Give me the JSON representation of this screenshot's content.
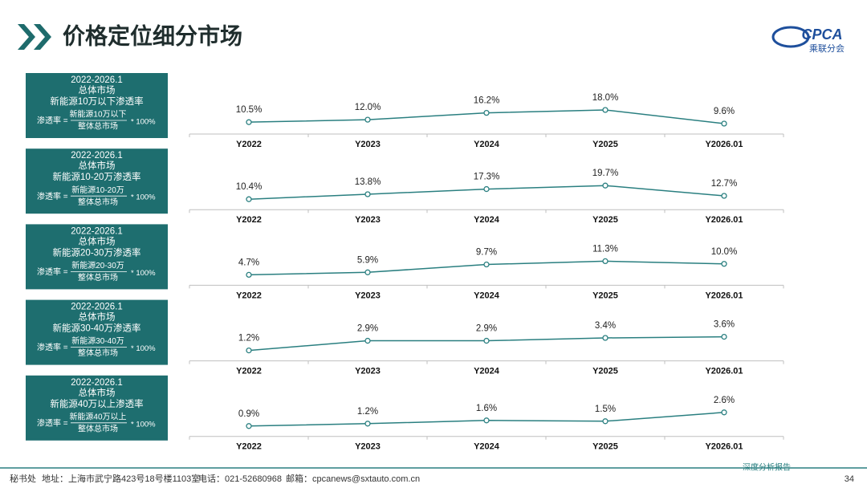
{
  "title": "价格定位细分市场",
  "logo": {
    "name": "CPCA",
    "subtitle": "乘联分会"
  },
  "footer": {
    "office": "秘书处",
    "address": "地址：上海市武宁路423号18号楼1103室",
    "phone": "电话：021-52680968",
    "email": "邮箱：cpcanews@sxtauto.com.cn",
    "report": "深度分析报告",
    "page": "34"
  },
  "chart_data": [
    {
      "type": "line",
      "period": "2022-2026.1",
      "market": "总体市场",
      "title": "新能源10万以下渗透率",
      "formula": {
        "lhs": "渗透率 =",
        "numerator": "新能源10万以下",
        "denominator": "整体总市场",
        "factor": "* 100%"
      },
      "categories": [
        "Y2022",
        "Y2023",
        "Y2024",
        "Y2025",
        "Y2026.01"
      ],
      "color": "#2a7f80",
      "values": [
        10.5,
        12.0,
        16.2,
        18.0,
        9.6
      ],
      "value_labels": [
        "10.5%",
        "12.0%",
        "16.2%",
        "18.0%",
        "9.6%"
      ]
    },
    {
      "type": "line",
      "period": "2022-2026.1",
      "market": "总体市场",
      "title": "新能源10-20万渗透率",
      "formula": {
        "lhs": "渗透率 =",
        "numerator": "新能源10-20万",
        "denominator": "整体总市场",
        "factor": "* 100%"
      },
      "categories": [
        "Y2022",
        "Y2023",
        "Y2024",
        "Y2025",
        "Y2026.01"
      ],
      "color": "#2a7f80",
      "values": [
        10.4,
        13.8,
        17.3,
        19.7,
        12.7
      ],
      "value_labels": [
        "10.4%",
        "13.8%",
        "17.3%",
        "19.7%",
        "12.7%"
      ]
    },
    {
      "type": "line",
      "period": "2022-2026.1",
      "market": "总体市场",
      "title": "新能源20-30万渗透率",
      "formula": {
        "lhs": "渗透率 =",
        "numerator": "新能源20-30万",
        "denominator": "整体总市场",
        "factor": "* 100%"
      },
      "categories": [
        "Y2022",
        "Y2023",
        "Y2024",
        "Y2025",
        "Y2026.01"
      ],
      "color": "#2a7f80",
      "values": [
        4.7,
        5.9,
        9.7,
        11.3,
        10.0
      ],
      "value_labels": [
        "4.7%",
        "5.9%",
        "9.7%",
        "11.3%",
        "10.0%"
      ]
    },
    {
      "type": "line",
      "period": "2022-2026.1",
      "market": "总体市场",
      "title": "新能源30-40万渗透率",
      "formula": {
        "lhs": "渗透率 =",
        "numerator": "新能源30-40万",
        "denominator": "整体总市场",
        "factor": "* 100%"
      },
      "categories": [
        "Y2022",
        "Y2023",
        "Y2024",
        "Y2025",
        "Y2026.01"
      ],
      "color": "#2a7f80",
      "values": [
        1.2,
        2.9,
        2.9,
        3.4,
        3.6
      ],
      "value_labels": [
        "1.2%",
        "2.9%",
        "2.9%",
        "3.4%",
        "3.6%"
      ]
    },
    {
      "type": "line",
      "period": "2022-2026.1",
      "market": "总体市场",
      "title": "新能源40万以上渗透率",
      "formula": {
        "lhs": "渗透率 =",
        "numerator": "新能源40万以上",
        "denominator": "整体总市场",
        "factor": "* 100%"
      },
      "categories": [
        "Y2022",
        "Y2023",
        "Y2024",
        "Y2025",
        "Y2026.01"
      ],
      "color": "#2a7f80",
      "values": [
        0.9,
        1.2,
        1.6,
        1.5,
        2.6
      ],
      "value_labels": [
        "0.9%",
        "1.2%",
        "1.6%",
        "1.5%",
        "2.6%"
      ]
    }
  ]
}
